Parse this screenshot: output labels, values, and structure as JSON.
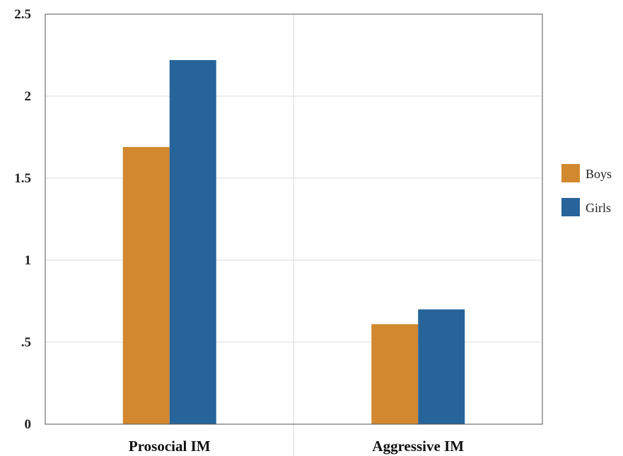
{
  "chart_data": {
    "type": "bar",
    "categories": [
      "Prosocial IM",
      "Aggressive IM"
    ],
    "series": [
      {
        "name": "Boys",
        "values": [
          1.69,
          0.61
        ],
        "color": "#D2882F"
      },
      {
        "name": "Girls",
        "values": [
          2.22,
          0.7
        ],
        "color": "#27649A"
      }
    ],
    "yticks": [
      "0",
      ".5",
      "1",
      "1.5",
      "2",
      "2.5"
    ],
    "ytick_values": [
      0,
      0.5,
      1,
      1.5,
      2,
      2.5
    ],
    "ylim": [
      0,
      2.5
    ],
    "grid": true,
    "legend_position": "right"
  }
}
